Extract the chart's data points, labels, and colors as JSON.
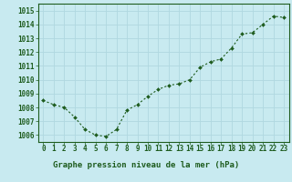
{
  "x": [
    0,
    1,
    2,
    3,
    4,
    5,
    6,
    7,
    8,
    9,
    10,
    11,
    12,
    13,
    14,
    15,
    16,
    17,
    18,
    19,
    20,
    21,
    22,
    23
  ],
  "y": [
    1008.5,
    1008.2,
    1008.0,
    1007.3,
    1006.4,
    1006.0,
    1005.9,
    1006.4,
    1007.8,
    1008.2,
    1008.8,
    1009.3,
    1009.6,
    1009.7,
    1010.0,
    1010.9,
    1011.3,
    1011.5,
    1012.3,
    1013.3,
    1013.4,
    1014.0,
    1014.6,
    1014.5
  ],
  "bg_color": "#c8eaf0",
  "line_color": "#1e5c1e",
  "marker_color": "#1e5c1e",
  "grid_color": "#b0d8e0",
  "xlabel": "Graphe pression niveau de la mer (hPa)",
  "ylim": [
    1005.5,
    1015.5
  ],
  "yticks": [
    1006,
    1007,
    1008,
    1009,
    1010,
    1011,
    1012,
    1013,
    1014,
    1015
  ],
  "xticks": [
    0,
    1,
    2,
    3,
    4,
    5,
    6,
    7,
    8,
    9,
    10,
    11,
    12,
    13,
    14,
    15,
    16,
    17,
    18,
    19,
    20,
    21,
    22,
    23
  ],
  "border_color": "#1e5c1e",
  "xlabel_color": "#1e5c1e",
  "xlabel_fontsize": 6.5,
  "tick_fontsize": 5.5,
  "bottom_bg": "#ffffff"
}
